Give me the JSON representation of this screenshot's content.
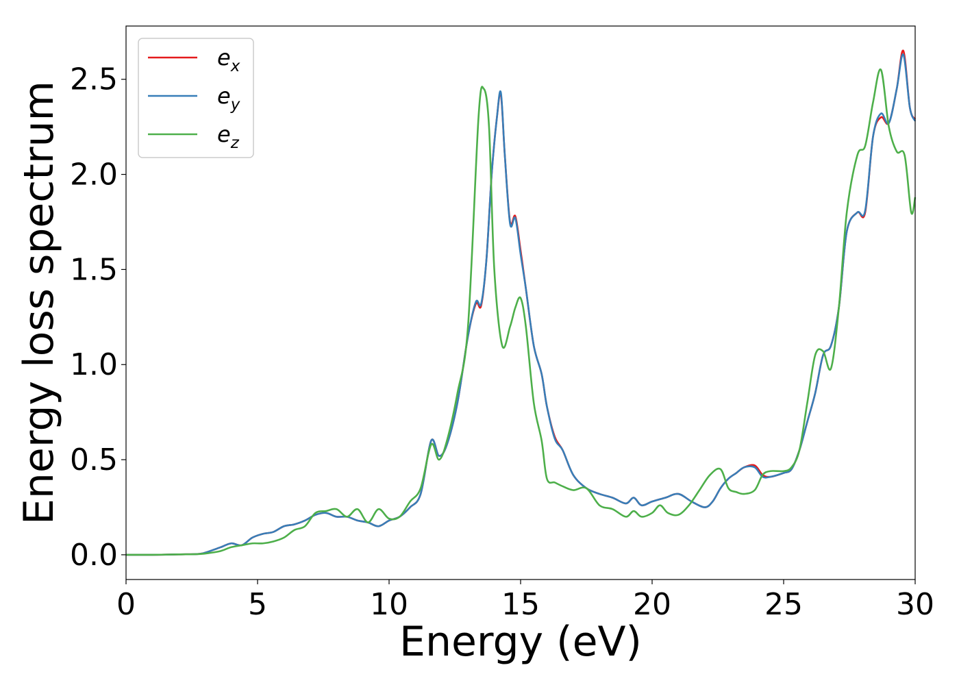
{
  "chart_data": {
    "type": "line",
    "title": "",
    "xlabel": "Energy (eV)",
    "ylabel": "Energy loss spectrum",
    "xlim": [
      0,
      30
    ],
    "ylim": [
      -0.13,
      2.78
    ],
    "xticks": [
      0,
      5,
      10,
      15,
      20,
      25,
      30
    ],
    "xtick_labels": [
      "0",
      "5",
      "10",
      "15",
      "20",
      "25",
      "30"
    ],
    "yticks": [
      0.0,
      0.5,
      1.0,
      1.5,
      2.0,
      2.5
    ],
    "ytick_labels": [
      "0.0",
      "0.5",
      "1.0",
      "1.5",
      "2.0",
      "2.5"
    ],
    "grid": false,
    "legend_position": "top-left",
    "series": [
      {
        "name": "e_x",
        "label_base": "e",
        "label_sub": "x",
        "color": "#e41a1c",
        "x": [
          0,
          1,
          2,
          2.8,
          3.2,
          3.6,
          4.0,
          4.4,
          4.8,
          5.2,
          5.6,
          6.0,
          6.4,
          6.8,
          7.2,
          7.6,
          8.0,
          8.4,
          8.8,
          9.2,
          9.6,
          10.0,
          10.4,
          10.8,
          11.2,
          11.6,
          11.9,
          12.2,
          12.6,
          13.0,
          13.3,
          13.5,
          13.7,
          13.9,
          14.1,
          14.25,
          14.4,
          14.6,
          14.8,
          15.0,
          15.2,
          15.5,
          15.8,
          16.0,
          16.3,
          16.6,
          17.0,
          17.5,
          18.0,
          18.5,
          19.0,
          19.3,
          19.6,
          20.0,
          20.5,
          21.0,
          21.5,
          22.0,
          22.3,
          22.6,
          22.9,
          23.2,
          23.5,
          23.9,
          24.2,
          24.5,
          25.0,
          25.3,
          25.6,
          25.9,
          26.2,
          26.5,
          26.8,
          27.1,
          27.4,
          27.8,
          28.1,
          28.4,
          28.7,
          29.0,
          29.3,
          29.55,
          29.8,
          30.0
        ],
        "y": [
          0,
          0,
          0.002,
          0.005,
          0.02,
          0.04,
          0.06,
          0.05,
          0.09,
          0.11,
          0.12,
          0.15,
          0.16,
          0.18,
          0.21,
          0.22,
          0.2,
          0.2,
          0.18,
          0.17,
          0.15,
          0.18,
          0.2,
          0.25,
          0.32,
          0.6,
          0.52,
          0.58,
          0.8,
          1.15,
          1.32,
          1.31,
          1.55,
          2.0,
          2.3,
          2.42,
          2.1,
          1.75,
          1.78,
          1.6,
          1.4,
          1.1,
          0.95,
          0.78,
          0.62,
          0.55,
          0.42,
          0.35,
          0.32,
          0.3,
          0.27,
          0.3,
          0.26,
          0.28,
          0.3,
          0.32,
          0.28,
          0.25,
          0.28,
          0.35,
          0.4,
          0.43,
          0.46,
          0.47,
          0.42,
          0.41,
          0.43,
          0.45,
          0.55,
          0.7,
          0.85,
          1.05,
          1.1,
          1.3,
          1.7,
          1.8,
          1.8,
          2.2,
          2.3,
          2.27,
          2.45,
          2.65,
          2.35,
          2.29
        ]
      },
      {
        "name": "e_y",
        "label_base": "e",
        "label_sub": "y",
        "color": "#377eb8",
        "x": [
          0,
          1,
          2,
          2.8,
          3.2,
          3.6,
          4.0,
          4.4,
          4.8,
          5.2,
          5.6,
          6.0,
          6.4,
          6.8,
          7.2,
          7.6,
          8.0,
          8.4,
          8.8,
          9.2,
          9.6,
          10.0,
          10.4,
          10.8,
          11.2,
          11.6,
          11.9,
          12.2,
          12.6,
          13.0,
          13.3,
          13.5,
          13.7,
          13.9,
          14.1,
          14.25,
          14.4,
          14.6,
          14.8,
          15.0,
          15.2,
          15.5,
          15.8,
          16.0,
          16.3,
          16.6,
          17.0,
          17.5,
          18.0,
          18.5,
          19.0,
          19.3,
          19.6,
          20.0,
          20.5,
          21.0,
          21.5,
          22.0,
          22.3,
          22.6,
          22.9,
          23.2,
          23.5,
          23.9,
          24.2,
          24.5,
          25.0,
          25.3,
          25.6,
          25.9,
          26.2,
          26.5,
          26.8,
          27.1,
          27.4,
          27.8,
          28.1,
          28.4,
          28.7,
          29.0,
          29.3,
          29.55,
          29.8,
          30.0
        ],
        "y": [
          0,
          0,
          0.002,
          0.005,
          0.02,
          0.04,
          0.06,
          0.05,
          0.09,
          0.11,
          0.12,
          0.15,
          0.16,
          0.18,
          0.21,
          0.22,
          0.2,
          0.2,
          0.18,
          0.17,
          0.15,
          0.18,
          0.2,
          0.25,
          0.32,
          0.6,
          0.52,
          0.58,
          0.8,
          1.15,
          1.33,
          1.32,
          1.55,
          2.0,
          2.3,
          2.43,
          2.1,
          1.74,
          1.77,
          1.58,
          1.4,
          1.1,
          0.95,
          0.78,
          0.61,
          0.55,
          0.42,
          0.35,
          0.32,
          0.3,
          0.27,
          0.3,
          0.26,
          0.28,
          0.3,
          0.32,
          0.28,
          0.25,
          0.28,
          0.35,
          0.4,
          0.43,
          0.46,
          0.46,
          0.41,
          0.41,
          0.43,
          0.45,
          0.55,
          0.7,
          0.85,
          1.05,
          1.1,
          1.3,
          1.7,
          1.8,
          1.81,
          2.2,
          2.32,
          2.27,
          2.45,
          2.63,
          2.35,
          2.28
        ]
      },
      {
        "name": "e_z",
        "label_base": "e",
        "label_sub": "z",
        "color": "#4daf4a",
        "x": [
          0,
          1,
          2,
          2.8,
          3.2,
          3.6,
          4.0,
          4.4,
          4.8,
          5.2,
          5.6,
          6.0,
          6.4,
          6.8,
          7.2,
          7.6,
          8.0,
          8.4,
          8.8,
          9.2,
          9.6,
          10.0,
          10.4,
          10.8,
          11.2,
          11.6,
          11.9,
          12.2,
          12.6,
          13.0,
          13.4,
          13.6,
          13.8,
          14.0,
          14.3,
          14.6,
          14.8,
          15.0,
          15.2,
          15.5,
          15.8,
          16.0,
          16.3,
          16.6,
          17.0,
          17.5,
          18.0,
          18.5,
          19.0,
          19.3,
          19.6,
          20.0,
          20.3,
          20.6,
          21.0,
          21.4,
          21.8,
          22.2,
          22.6,
          22.9,
          23.2,
          23.5,
          23.9,
          24.2,
          24.5,
          25.0,
          25.3,
          25.6,
          25.9,
          26.2,
          26.5,
          26.8,
          27.1,
          27.4,
          27.8,
          28.1,
          28.4,
          28.7,
          29.0,
          29.3,
          29.6,
          29.85,
          30.0
        ],
        "y": [
          0,
          0,
          0.002,
          0.004,
          0.01,
          0.02,
          0.04,
          0.05,
          0.06,
          0.06,
          0.07,
          0.09,
          0.13,
          0.15,
          0.22,
          0.23,
          0.24,
          0.2,
          0.24,
          0.17,
          0.24,
          0.19,
          0.2,
          0.28,
          0.35,
          0.58,
          0.5,
          0.6,
          0.85,
          1.2,
          2.3,
          2.45,
          2.25,
          1.5,
          1.1,
          1.2,
          1.3,
          1.35,
          1.2,
          0.8,
          0.6,
          0.4,
          0.38,
          0.36,
          0.34,
          0.35,
          0.26,
          0.24,
          0.2,
          0.23,
          0.2,
          0.22,
          0.26,
          0.22,
          0.21,
          0.26,
          0.34,
          0.42,
          0.45,
          0.35,
          0.33,
          0.32,
          0.34,
          0.42,
          0.44,
          0.44,
          0.46,
          0.55,
          0.8,
          1.05,
          1.07,
          0.98,
          1.3,
          1.8,
          2.1,
          2.15,
          2.38,
          2.55,
          2.25,
          2.12,
          2.1,
          1.8,
          1.88
        ]
      }
    ]
  }
}
